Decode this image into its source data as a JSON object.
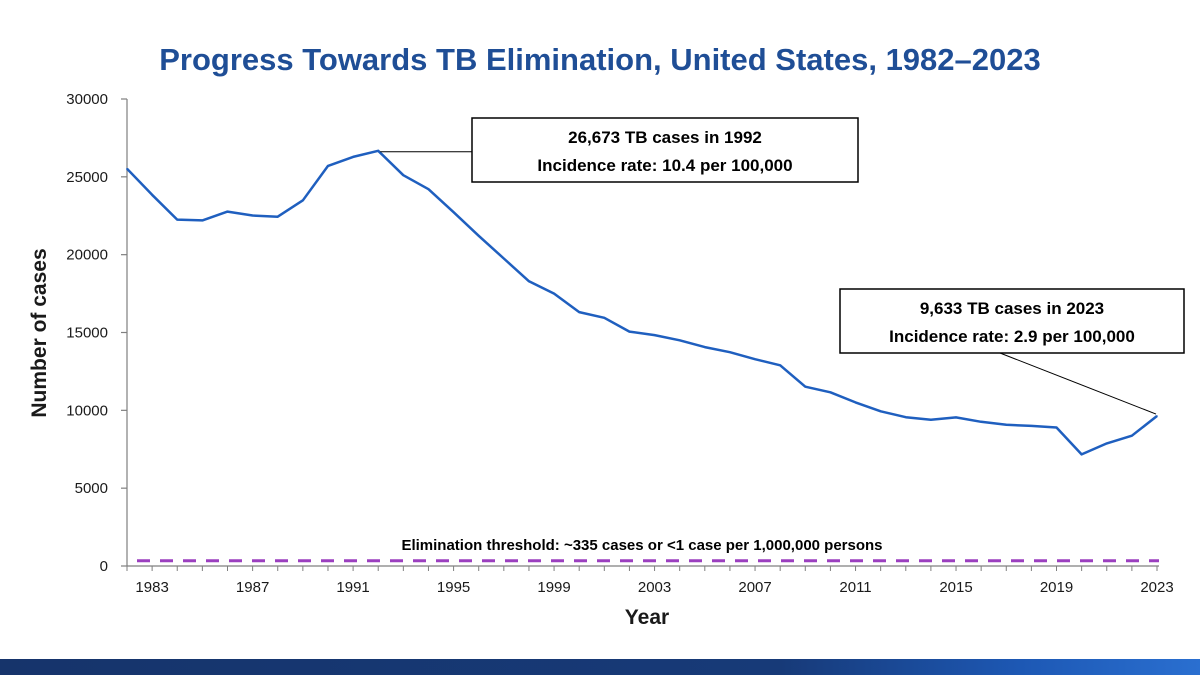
{
  "colors": {
    "title": "#1F4E96",
    "series": "#1F5FBF",
    "threshold": "#9B3FBF",
    "axis": "#7f7f7f"
  },
  "chart_data": {
    "type": "line",
    "title": "Progress Towards TB Elimination, United States, 1982–2023",
    "xlabel": "Year",
    "ylabel": "Number of cases",
    "xlim": [
      1982,
      2023
    ],
    "ylim": [
      0,
      30000
    ],
    "y_ticks": [
      "0",
      "5000",
      "10000",
      "15000",
      "20000",
      "25000",
      "30000"
    ],
    "y_tick_values": [
      0,
      5000,
      10000,
      15000,
      20000,
      25000,
      30000
    ],
    "x_ticks": [
      "1983",
      "1987",
      "1991",
      "1995",
      "1999",
      "2003",
      "2007",
      "2011",
      "2015",
      "2019",
      "2023"
    ],
    "x_tick_values": [
      1983,
      1987,
      1991,
      1995,
      1999,
      2003,
      2007,
      2011,
      2015,
      2019,
      2023
    ],
    "grid": false,
    "series": [
      {
        "name": "TB cases",
        "x": [
          1982,
          1983,
          1984,
          1985,
          1986,
          1987,
          1988,
          1989,
          1990,
          1991,
          1992,
          1993,
          1994,
          1995,
          1996,
          1997,
          1998,
          1999,
          2000,
          2001,
          2002,
          2003,
          2004,
          2005,
          2006,
          2007,
          2008,
          2009,
          2010,
          2011,
          2012,
          2013,
          2014,
          2015,
          2016,
          2017,
          2018,
          2019,
          2020,
          2021,
          2022,
          2023
        ],
        "values": [
          25520,
          23846,
          22255,
          22201,
          22768,
          22517,
          22436,
          23495,
          25701,
          26283,
          26673,
          25102,
          24206,
          22728,
          21210,
          19751,
          18287,
          17501,
          16309,
          15945,
          15055,
          14835,
          14499,
          14065,
          13732,
          13282,
          12895,
          11520,
          11161,
          10510,
          9938,
          9560,
          9398,
          9547,
          9262,
          9071,
          8997,
          8900,
          7170,
          7877,
          8373,
          9633
        ]
      }
    ],
    "threshold": {
      "value": 335,
      "label": "Elimination threshold:  ~335 cases or <1 case per 1,000,000 persons"
    },
    "annotations": [
      {
        "year": 1992,
        "value": 26673,
        "line1": "26,673 TB cases in 1992",
        "line2": "Incidence rate: 10.4 per 100,000"
      },
      {
        "year": 2023,
        "value": 9633,
        "line1": "9,633 TB cases in 2023",
        "line2": "Incidence rate: 2.9 per 100,000"
      }
    ]
  }
}
